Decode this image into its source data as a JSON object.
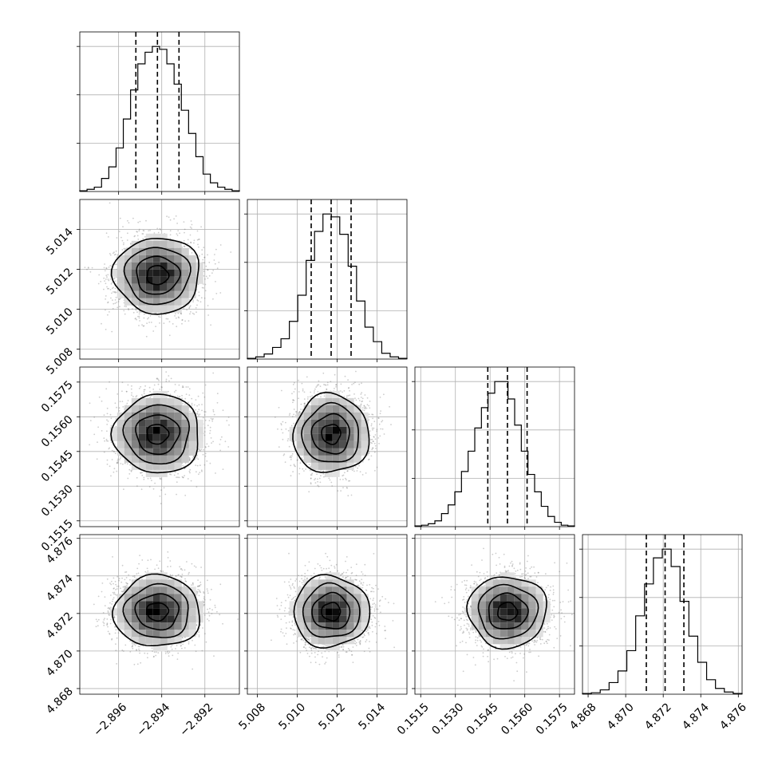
{
  "chart_data": {
    "type": "corner",
    "parameters": [
      {
        "mean": -2.8942,
        "sigma": 0.001,
        "range": [
          -2.8978,
          -2.8904
        ],
        "ticks": [
          -2.896,
          -2.894,
          -2.892
        ],
        "tick_labels": [
          "−2.896",
          "−2.894",
          "−2.892"
        ],
        "quantiles": [
          -2.8952,
          -2.8942,
          -2.8932
        ],
        "histogram": [
          0.5,
          1.5,
          3,
          9,
          17,
          30,
          50,
          70,
          88,
          96,
          100,
          98,
          88,
          74,
          56,
          40,
          24,
          12,
          6,
          3,
          1.5,
          0.5
        ]
      },
      {
        "mean": 5.0117,
        "sigma": 0.00095,
        "range": [
          5.0075,
          5.0155
        ],
        "ticks": [
          5.008,
          5.01,
          5.012,
          5.014
        ],
        "tick_labels": [
          "5.008",
          "5.010",
          "5.012",
          "5.014"
        ],
        "quantiles": [
          5.0107,
          5.0117,
          5.0127
        ],
        "histogram": [
          0.5,
          1.5,
          3.5,
          8,
          14,
          26,
          44,
          68,
          88,
          100,
          98,
          86,
          64,
          40,
          22,
          12,
          4,
          1.5,
          0.5
        ]
      },
      {
        "mean": 0.15525,
        "sigma": 0.00085,
        "range": [
          0.15125,
          0.15815
        ],
        "ticks": [
          0.1515,
          0.153,
          0.1545,
          0.156,
          0.1575
        ],
        "tick_labels": [
          "0.1515",
          "0.1530",
          "0.1545",
          "0.1560",
          "0.1575"
        ],
        "quantiles": [
          0.1544,
          0.15525,
          0.1561
        ],
        "histogram": [
          0.5,
          1,
          2,
          4,
          9,
          15,
          24,
          38,
          52,
          68,
          82,
          92,
          100,
          100,
          88,
          70,
          52,
          36,
          24,
          14,
          7,
          3,
          1,
          0.5
        ]
      },
      {
        "mean": 4.8721,
        "sigma": 0.00095,
        "range": [
          4.8677,
          4.8762
        ],
        "ticks": [
          4.868,
          4.87,
          4.872,
          4.874,
          4.876
        ],
        "tick_labels": [
          "4.868",
          "4.870",
          "4.872",
          "4.874",
          "4.876"
        ],
        "quantiles": [
          4.8711,
          4.8721,
          4.8731
        ],
        "histogram": [
          0.5,
          1,
          3,
          8,
          16,
          30,
          54,
          76,
          94,
          100,
          88,
          64,
          40,
          22,
          10,
          4,
          1.5,
          0.5
        ]
      }
    ],
    "contour_levels_sigma": [
      0.5,
      1.0,
      1.5,
      2.0
    ],
    "samples_per_panel": 2500,
    "grid": true
  }
}
